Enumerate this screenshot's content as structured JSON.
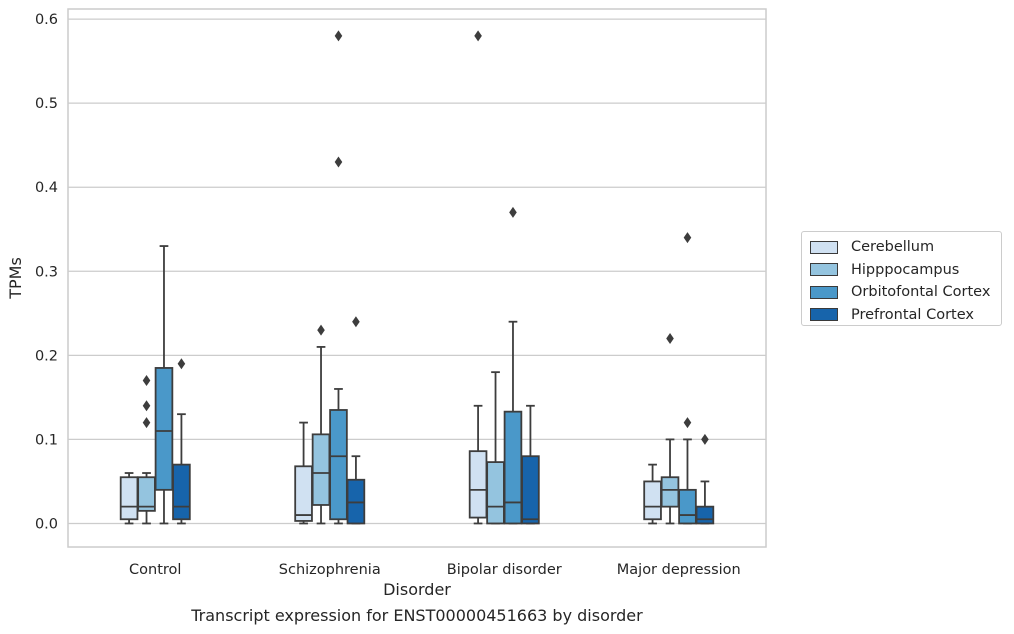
{
  "chart_data": {
    "type": "box",
    "xlabel": "Disorder",
    "ylabel": "TPMs",
    "ylim": [
      -0.028,
      0.612
    ],
    "yticks": [
      "0.0",
      "0.1",
      "0.2",
      "0.3",
      "0.4",
      "0.5",
      "0.6"
    ],
    "grid": true,
    "legend_position": "right",
    "categories": [
      "Control",
      "Schizophrenia",
      "Bipolar disorder",
      "Major depression"
    ],
    "series": [
      {
        "name": "Cerebellum",
        "color": "#d0e1f2",
        "boxes": [
          {
            "whislo": 0.0,
            "q1": 0.005,
            "med": 0.02,
            "q3": 0.055,
            "whishi": 0.06,
            "fliers": []
          },
          {
            "whislo": 0.0,
            "q1": 0.003,
            "med": 0.01,
            "q3": 0.068,
            "whishi": 0.12,
            "fliers": []
          },
          {
            "whislo": 0.0,
            "q1": 0.007,
            "med": 0.04,
            "q3": 0.086,
            "whishi": 0.14,
            "fliers": [
              0.58
            ]
          },
          {
            "whislo": 0.0,
            "q1": 0.005,
            "med": 0.02,
            "q3": 0.05,
            "whishi": 0.07,
            "fliers": []
          }
        ]
      },
      {
        "name": "Hipppocampus",
        "color": "#94c4df",
        "boxes": [
          {
            "whislo": 0.0,
            "q1": 0.015,
            "med": 0.02,
            "q3": 0.055,
            "whishi": 0.06,
            "fliers": [
              0.12,
              0.14,
              0.17
            ]
          },
          {
            "whislo": 0.0,
            "q1": 0.022,
            "med": 0.06,
            "q3": 0.106,
            "whishi": 0.21,
            "fliers": [
              0.23
            ]
          },
          {
            "whislo": 0.0,
            "q1": 0.0,
            "med": 0.02,
            "q3": 0.073,
            "whishi": 0.18,
            "fliers": []
          },
          {
            "whislo": 0.0,
            "q1": 0.02,
            "med": 0.04,
            "q3": 0.055,
            "whishi": 0.1,
            "fliers": [
              0.22
            ]
          }
        ]
      },
      {
        "name": "Orbitofontal Cortex",
        "color": "#4a98c9",
        "boxes": [
          {
            "whislo": 0.0,
            "q1": 0.04,
            "med": 0.11,
            "q3": 0.185,
            "whishi": 0.33,
            "fliers": []
          },
          {
            "whislo": 0.0,
            "q1": 0.005,
            "med": 0.08,
            "q3": 0.135,
            "whishi": 0.16,
            "fliers": [
              0.43,
              0.58
            ]
          },
          {
            "whislo": 0.0,
            "q1": 0.0,
            "med": 0.025,
            "q3": 0.133,
            "whishi": 0.24,
            "fliers": [
              0.37
            ]
          },
          {
            "whislo": 0.0,
            "q1": 0.0,
            "med": 0.01,
            "q3": 0.04,
            "whishi": 0.1,
            "fliers": [
              0.12,
              0.34
            ]
          }
        ]
      },
      {
        "name": "Prefrontal Cortex",
        "color": "#1764ab",
        "boxes": [
          {
            "whislo": 0.0,
            "q1": 0.005,
            "med": 0.02,
            "q3": 0.07,
            "whishi": 0.13,
            "fliers": [
              0.19
            ]
          },
          {
            "whislo": 0.0,
            "q1": 0.0,
            "med": 0.025,
            "q3": 0.052,
            "whishi": 0.08,
            "fliers": [
              0.24
            ]
          },
          {
            "whislo": 0.0,
            "q1": 0.0,
            "med": 0.005,
            "q3": 0.08,
            "whishi": 0.14,
            "fliers": []
          },
          {
            "whislo": 0.0,
            "q1": 0.0,
            "med": 0.005,
            "q3": 0.02,
            "whishi": 0.05,
            "fliers": [
              0.1
            ]
          }
        ]
      }
    ]
  },
  "caption": "Transcript expression for ENST00000451663 by disorder"
}
